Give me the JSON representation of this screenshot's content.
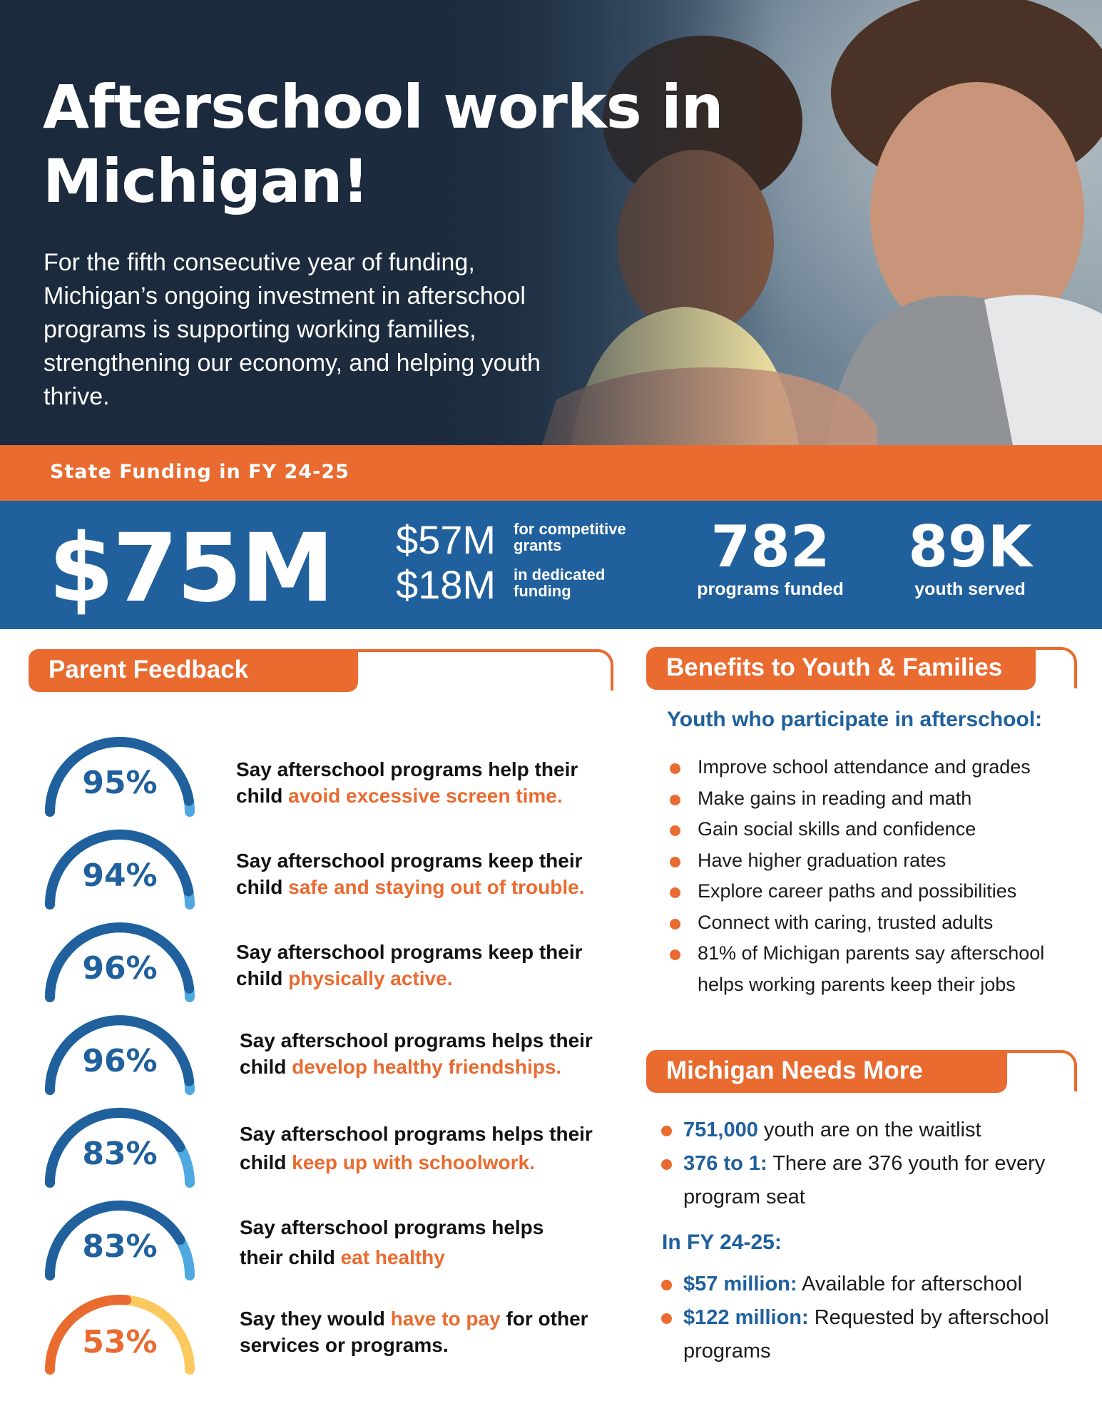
{
  "hero": {
    "title": "Afterschool works in Michigan!",
    "intro": "For the fifth consecutive year of funding, Michigan’s ongoing investment in afterschool programs is supporting working families, strengthening our economy, and helping youth thrive."
  },
  "funding": {
    "bar_label": "State Funding in FY 24-25",
    "total": "$75M",
    "split": [
      {
        "amount": "$57M",
        "note": "for competitive grants"
      },
      {
        "amount": "$18M",
        "note": "in dedicated funding"
      }
    ],
    "stats": [
      {
        "value": "782",
        "label": "programs funded"
      },
      {
        "value": "89K",
        "label": "youth served"
      }
    ]
  },
  "feedback": {
    "heading": "Parent Feedback",
    "items": [
      {
        "percent": "95%",
        "level": 0.95,
        "text_before": "Say afterschool programs help their child ",
        "highlight": "avoid excessive screen time.",
        "text_after": ""
      },
      {
        "percent": "94%",
        "level": 0.94,
        "text_before": "Say afterschool programs keep their child ",
        "highlight": "safe and staying out of trouble.",
        "text_after": ""
      },
      {
        "percent": "96%",
        "level": 0.96,
        "text_before": "Say afterschool programs keep their child ",
        "highlight": "physically active.",
        "text_after": ""
      },
      {
        "percent": "96%",
        "level": 0.96,
        "text_before": "Say afterschool programs helps their child ",
        "highlight": "develop healthy friendships.",
        "text_after": ""
      },
      {
        "percent": "83%",
        "level": 0.83,
        "text_before": "Say afterschool programs helps their child ",
        "highlight": "keep up with schoolwork.",
        "text_after": ""
      },
      {
        "percent": "83%",
        "level": 0.83,
        "text_before": "Say afterschool programs helps their child ",
        "highlight": "eat healthy",
        "text_after": ""
      },
      {
        "percent": "53%",
        "level": 0.53,
        "text_before": "Say they would ",
        "highlight": "have to pay",
        "text_after": " for other services or programs."
      }
    ],
    "colors": {
      "blue": "#20609d",
      "light_blue": "#4fa8e0",
      "orange": "#e96b30",
      "yellow": "#fcc95f"
    }
  },
  "benefits": {
    "heading": "Benefits to Youth & Families",
    "subheading": "Youth who participate in afterschool:",
    "items": [
      "Improve school attendance and grades",
      "Make gains in reading and math",
      "Gain social skills and confidence",
      "Have higher graduation rates",
      "Explore career paths and possibilities",
      "Connect with caring, trusted adults",
      "81% of Michigan parents say afterschool helps working parents keep their jobs"
    ]
  },
  "needs": {
    "heading": "Michigan Needs More",
    "items": [
      {
        "bold": "751,000",
        "text": " youth are on the waitlist"
      },
      {
        "bold": "376 to 1:",
        "text": " There are 376 youth for every program seat"
      }
    ],
    "fy_heading": "In FY 24-25:",
    "fy_items": [
      {
        "bold": "$57 million:",
        "text": " Available for afterschool"
      },
      {
        "bold": "$122 million:",
        "text": " Requested by afterschool programs"
      }
    ]
  }
}
